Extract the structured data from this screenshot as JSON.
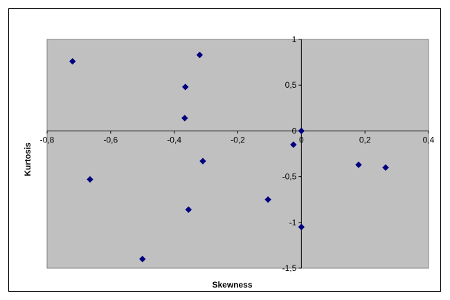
{
  "chart_data": {
    "type": "scatter",
    "title": "",
    "xlabel": "Skewness",
    "ylabel": "Kurtosis",
    "xlim": [
      -0.8,
      0.4
    ],
    "ylim": [
      -1.5,
      1
    ],
    "x_ticks": [
      -0.8,
      -0.6,
      -0.4,
      -0.2,
      0,
      0.2,
      0.4
    ],
    "x_tick_labels": [
      "-0,8",
      "-0,6",
      "-0,4",
      "-0,2",
      "0",
      "0,2",
      "0,4"
    ],
    "y_ticks": [
      1,
      0.5,
      0,
      -0.5,
      -1,
      -1.5
    ],
    "y_tick_labels": [
      "1",
      "0,5",
      "0",
      "-0,5",
      "-1",
      "-1,5"
    ],
    "grid": false,
    "legend": "none",
    "colors": {
      "plot_background": "#c0c0c0",
      "marker": "#000080",
      "axis": "#000000"
    },
    "marker_shape": "diamond",
    "series": [
      {
        "points": [
          {
            "x": -0.72,
            "y": 0.76
          },
          {
            "x": -0.32,
            "y": 0.83
          },
          {
            "x": -0.365,
            "y": 0.48
          },
          {
            "x": -0.367,
            "y": 0.14
          },
          {
            "x": -0.665,
            "y": -0.53
          },
          {
            "x": -0.31,
            "y": -0.33
          },
          {
            "x": -0.355,
            "y": -0.86
          },
          {
            "x": -0.5,
            "y": -1.4
          },
          {
            "x": -0.105,
            "y": -0.75
          },
          {
            "x": -0.025,
            "y": -0.15
          },
          {
            "x": 0,
            "y": 0
          },
          {
            "x": 0,
            "y": -1.05
          },
          {
            "x": 0.18,
            "y": -0.37
          },
          {
            "x": 0.265,
            "y": -0.4
          }
        ]
      }
    ]
  }
}
